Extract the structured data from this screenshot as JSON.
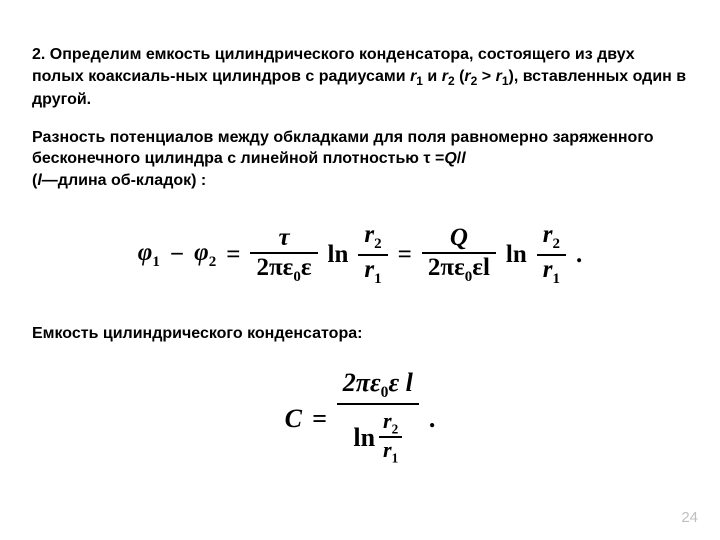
{
  "para1_a": "2. Определим емкость цилиндрического конденсатора, состоящего из двух полых коаксиаль-ных цилиндров с радиусами",
  "r1": "r",
  "r1_sub": "1",
  "and": " и ",
  "r2": "r",
  "r2_sub": "2",
  "paren_open": " (",
  "gt": " > ",
  "paren_close": "), ",
  "para1_b": "вставленных один в другой.",
  "para2_a": "Разность потенциалов между обкладками для поля равномерно заряженного бесконечного цилиндра с линейной плотностью ",
  "tau": "τ",
  "eq": " =",
  "Q": "Q",
  "slash": "/",
  "l": "l",
  "para2_b": "—длина об-кладок) :",
  "l_paren": "(",
  "eq1": {
    "lhs_phi1": "φ",
    "lhs_1": "1",
    "minus": " − ",
    "lhs_phi2": "φ",
    "lhs_2": "2",
    "equals": " = ",
    "f1_num": "τ",
    "f1_den_a": "2πε",
    "f1_den_0": "0",
    "f1_den_b": "ε",
    "ln": "ln",
    "f2_num": "r",
    "f2_num_sub": "2",
    "f2_den": "r",
    "f2_den_sub": "1",
    "f3_num": "Q",
    "f3_den_a": "2πε",
    "f3_den_0": "0",
    "f3_den_b": "εl",
    "period": "."
  },
  "para3": "Емкость цилиндрического конденсатора:",
  "eq2": {
    "C": "C",
    "equals": " = ",
    "num_a": "2πε",
    "num_0": "0",
    "num_b": "ε ",
    "num_l": "l",
    "den_ln": "ln",
    "den_f_num": "r",
    "den_f_num_sub": "2",
    "den_f_den": "r",
    "den_f_den_sub": "1",
    "period": "."
  },
  "page_number": "24"
}
